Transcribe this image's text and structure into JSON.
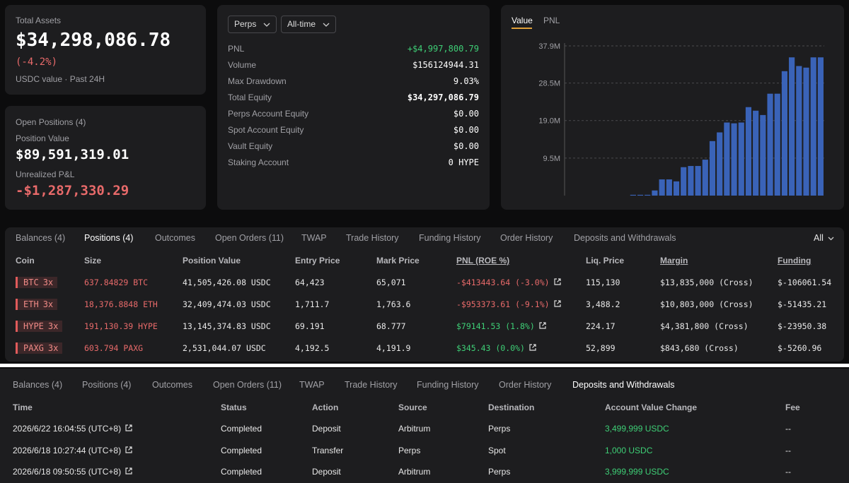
{
  "summary": {
    "label": "Total Assets",
    "value": "$34,298,086.78",
    "change": "(-4.2%)",
    "note": "USDC value · Past 24H"
  },
  "positions_card": {
    "title": "Open Positions (4)",
    "position_value_label": "Position Value",
    "position_value": "$89,591,319.01",
    "upnl_label": "Unrealized P&L",
    "upnl": "-$1,287,330.29"
  },
  "stats": {
    "filters": [
      "Perps",
      "All-time"
    ],
    "rows": [
      [
        "PNL",
        "+$4,997,800.79"
      ],
      [
        "Volume",
        "$156124944.31"
      ],
      [
        "Max Drawdown",
        "9.03%"
      ],
      [
        "Total Equity",
        "$34,297,086.79"
      ],
      [
        "Perps Account Equity",
        "$0.00"
      ],
      [
        "Spot Account Equity",
        "$0.00"
      ],
      [
        "Vault Equity",
        "$0.00"
      ],
      [
        "Staking Account",
        "0 HYPE"
      ]
    ]
  },
  "chart_data": {
    "type": "bar",
    "tabs": [
      "Value",
      "PNL"
    ],
    "values": [
      0,
      0,
      0,
      0,
      0,
      0,
      0,
      0,
      0,
      0.2,
      0.2,
      0.2,
      1.3,
      4.1,
      4.1,
      3.6,
      7.2,
      7.5,
      7.5,
      9.1,
      13.8,
      16.0,
      18.5,
      18.3,
      18.5,
      22.4,
      21.5,
      20.4,
      25.8,
      25.8,
      31.5,
      35.0,
      32.8,
      32.4,
      35.0,
      35.0
    ],
    "color": "#3a63b8",
    "ylim": [
      0,
      37.9
    ],
    "yticks": [
      {
        "value": 9.5,
        "label": "9.5M"
      },
      {
        "value": 19,
        "label": "19.0M"
      },
      {
        "value": 28.5,
        "label": "28.5M"
      },
      {
        "value": 37.9,
        "label": "37.9M"
      }
    ],
    "grid": true
  },
  "positions_table": {
    "tabs": [
      "Balances (4)",
      "Positions (4)",
      "Outcomes",
      "Open Orders (11)",
      "TWAP",
      "Trade History",
      "Funding History",
      "Order History",
      "Deposits and Withdrawals"
    ],
    "filter": "All",
    "columns": [
      "Coin",
      "Size",
      "Position Value",
      "Entry Price",
      "Mark Price",
      "PNL (ROE %)",
      "Liq. Price",
      "Margin",
      "Funding"
    ],
    "rows": [
      {
        "coin": "BTC",
        "leverage": "3x",
        "size": "637.84829 BTC",
        "position_value": "41,505,426.08 USDC",
        "entry_price": "64,423",
        "mark_price": "65,071",
        "pnl": "-$413443.64 (-3.0%)",
        "liq_price": "115,130",
        "margin": "$13,835,000 (Cross)",
        "funding": "$-106061.54"
      },
      {
        "coin": "ETH",
        "leverage": "3x",
        "size": "18,376.8848 ETH",
        "position_value": "32,409,474.03 USDC",
        "entry_price": "1,711.7",
        "mark_price": "1,763.6",
        "pnl": "-$953373.61 (-9.1%)",
        "liq_price": "3,488.2",
        "margin": "$10,803,000 (Cross)",
        "funding": "$-51435.21"
      },
      {
        "coin": "HYPE",
        "leverage": "3x",
        "size": "191,130.39 HYPE",
        "position_value": "13,145,374.83 USDC",
        "entry_price": "69.191",
        "mark_price": "68.777",
        "pnl": "$79141.53 (1.8%)",
        "liq_price": "224.17",
        "margin": "$4,381,800 (Cross)",
        "funding": "$-23950.38"
      },
      {
        "coin": "PAXG",
        "leverage": "3x",
        "size": "603.794 PAXG",
        "position_value": "2,531,044.07 USDC",
        "entry_price": "4,192.5",
        "mark_price": "4,191.9",
        "pnl": "$345.43 (0.0%)",
        "liq_price": "52,899",
        "margin": "$843,680 (Cross)",
        "funding": "$-5260.96"
      }
    ]
  },
  "deposits_table": {
    "tabs": [
      "Balances (4)",
      "Positions (4)",
      "Outcomes",
      "Open Orders (11)",
      "TWAP",
      "Trade History",
      "Funding History",
      "Order History",
      "Deposits and Withdrawals"
    ],
    "columns": [
      "Time",
      "Status",
      "Action",
      "Source",
      "Destination",
      "Account Value Change",
      "Fee"
    ],
    "rows": [
      [
        "2026/6/22 16:04:55 (UTC+8)",
        "Completed",
        "Deposit",
        "Arbitrum",
        "Perps",
        "3,499,999 USDC",
        "--"
      ],
      [
        "2026/6/18 10:27:44 (UTC+8)",
        "Completed",
        "Transfer",
        "Perps",
        "Spot",
        "1,000 USDC",
        "--"
      ],
      [
        "2026/6/18 09:50:55 (UTC+8)",
        "Completed",
        "Deposit",
        "Arbitrum",
        "Perps",
        "3,999,999 USDC",
        "--"
      ]
    ]
  }
}
